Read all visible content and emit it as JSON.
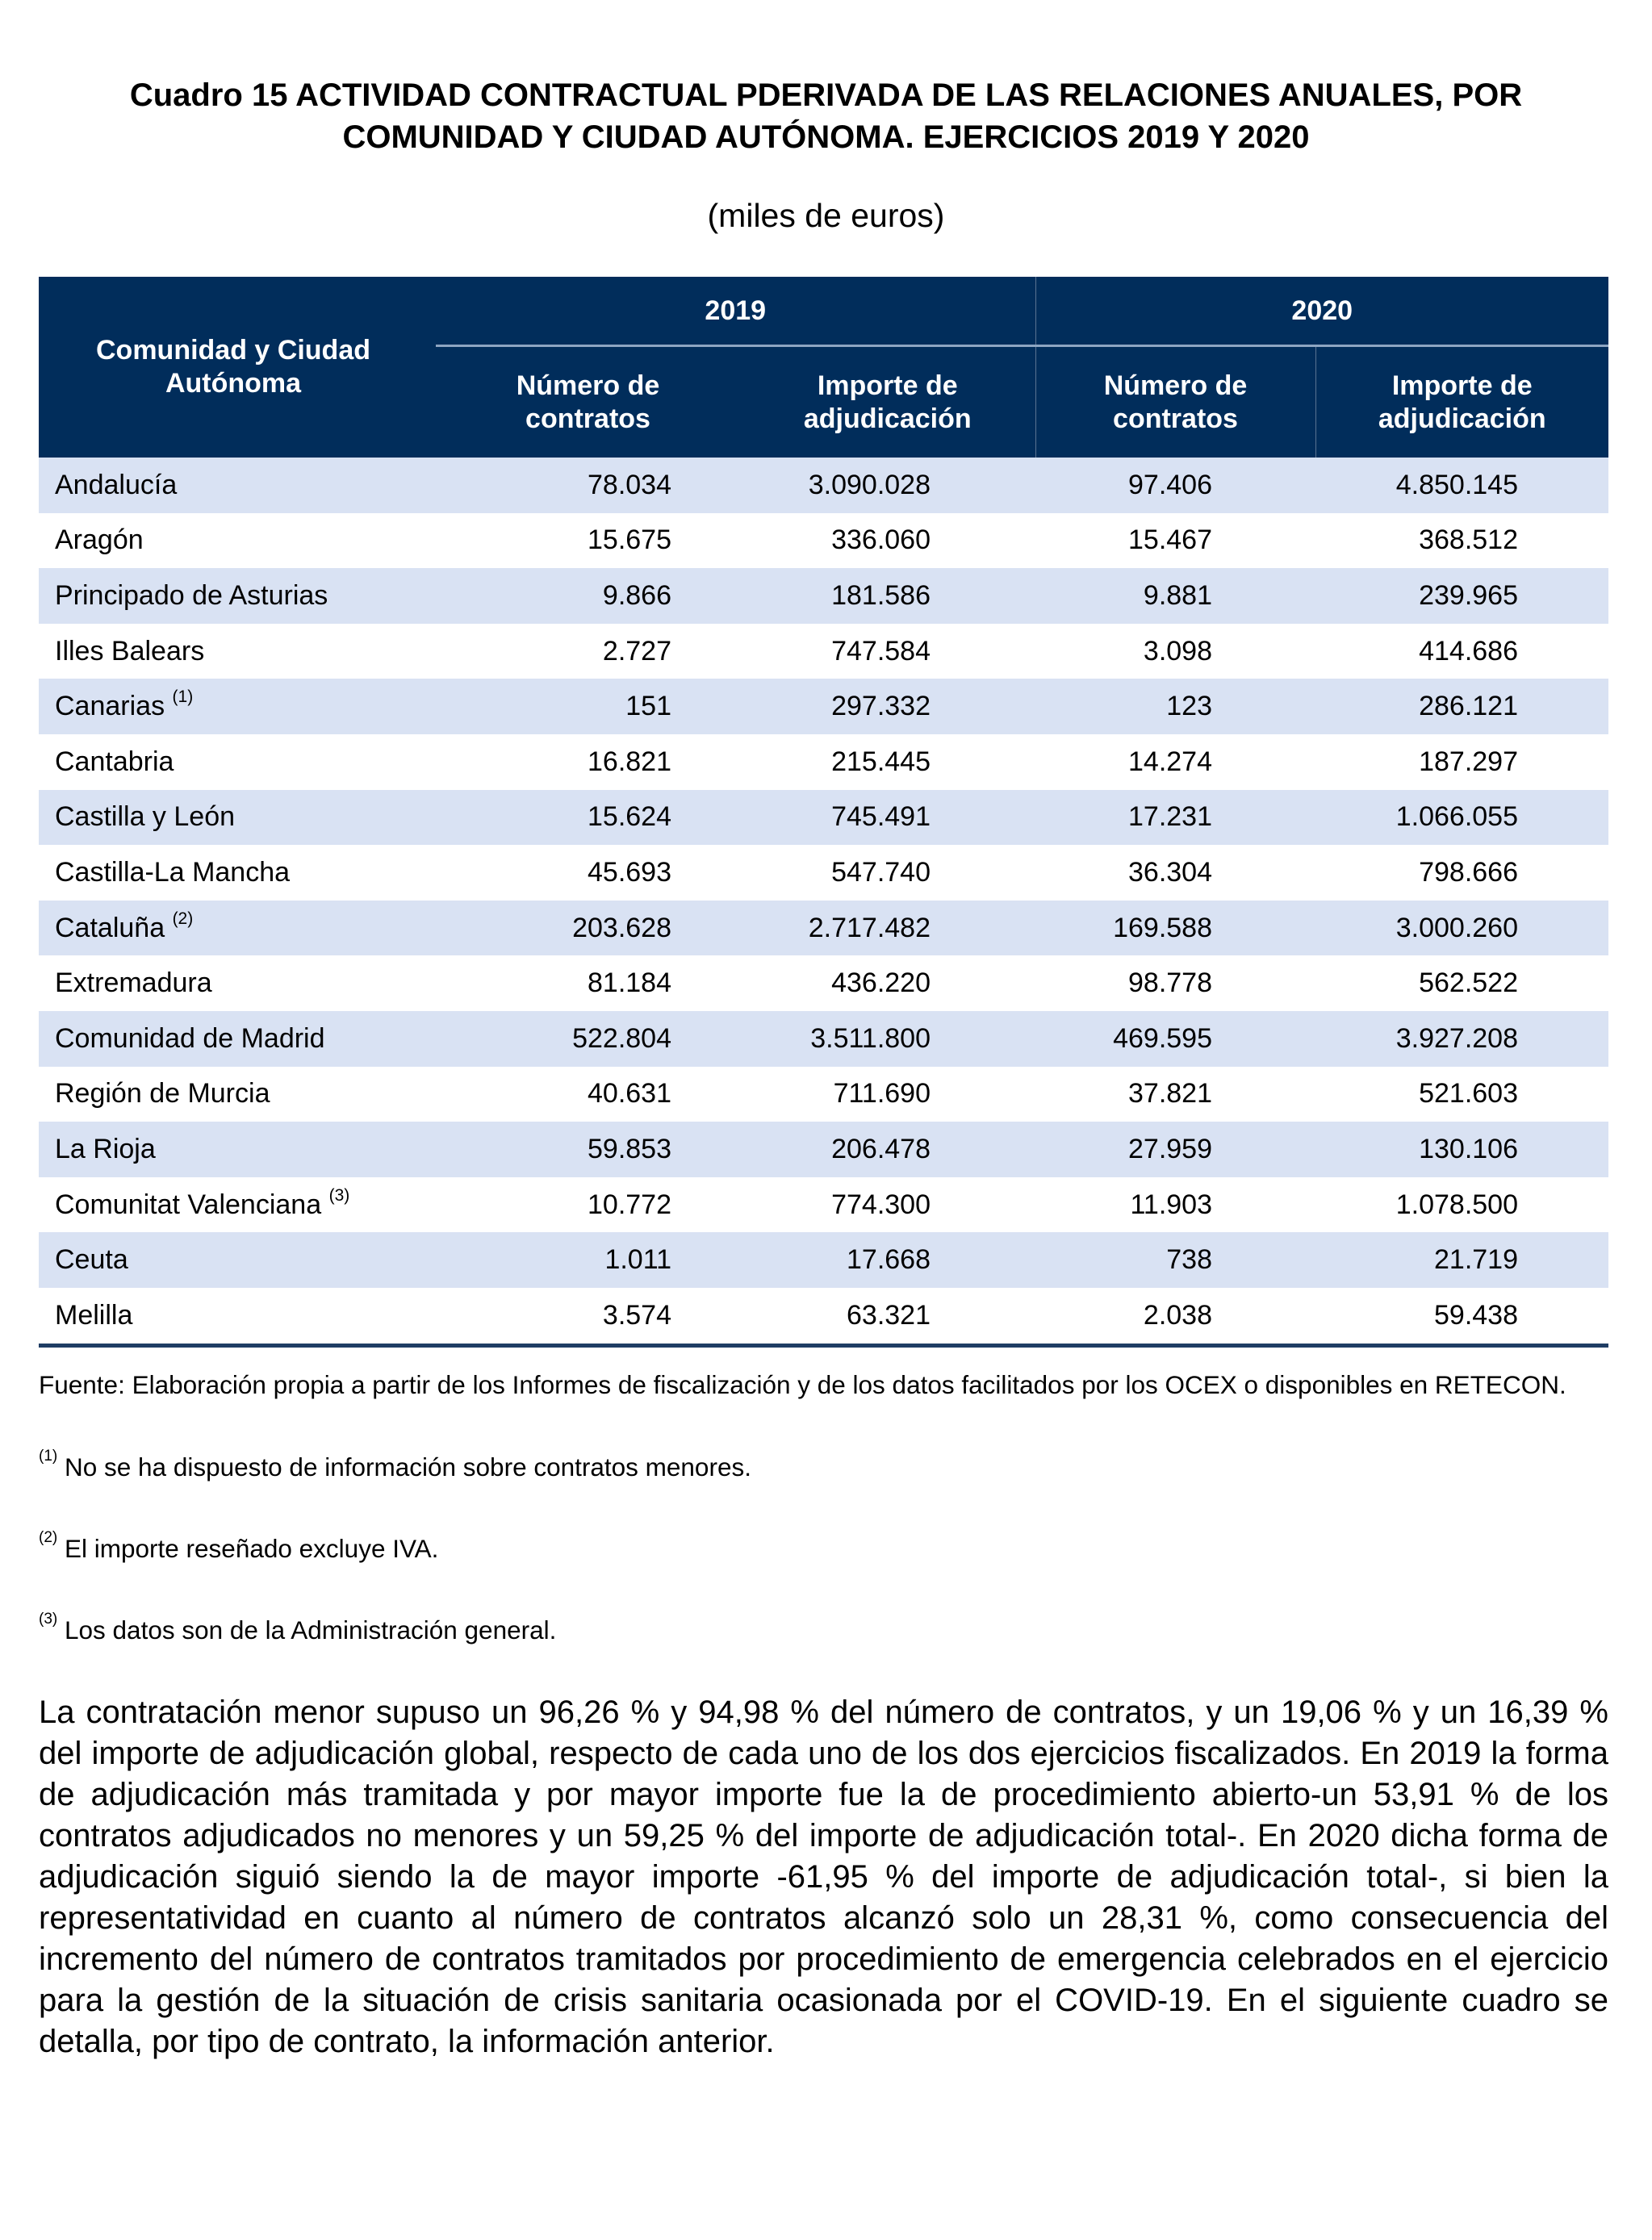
{
  "title": "Cuadro 15 ACTIVIDAD CONTRACTUAL PDERIVADA DE LAS RELACIONES ANUALES, POR COMUNIDAD Y CIUDAD AUTÓNOMA. EJERCICIOS 2019 Y 2020",
  "subtitle": "(miles de euros)",
  "table": {
    "header_region": "Comunidad y Ciudad Autónoma",
    "years": [
      "2019",
      "2020"
    ],
    "col_count": "Número de contratos",
    "col_amount": "Importe de adjudicación",
    "rows": [
      {
        "name": "Andalucía",
        "note": "",
        "n2019": "78.034",
        "i2019": "3.090.028",
        "n2020": "97.406",
        "i2020": "4.850.145"
      },
      {
        "name": "Aragón",
        "note": "",
        "n2019": "15.675",
        "i2019": "336.060",
        "n2020": "15.467",
        "i2020": "368.512"
      },
      {
        "name": "Principado de Asturias",
        "note": "",
        "n2019": "9.866",
        "i2019": "181.586",
        "n2020": "9.881",
        "i2020": "239.965"
      },
      {
        "name": "Illes Balears",
        "note": "",
        "n2019": "2.727",
        "i2019": "747.584",
        "n2020": "3.098",
        "i2020": "414.686"
      },
      {
        "name": "Canarias",
        "note": "(1)",
        "n2019": "151",
        "i2019": "297.332",
        "n2020": "123",
        "i2020": "286.121"
      },
      {
        "name": "Cantabria",
        "note": "",
        "n2019": "16.821",
        "i2019": "215.445",
        "n2020": "14.274",
        "i2020": "187.297"
      },
      {
        "name": "Castilla y León",
        "note": "",
        "n2019": "15.624",
        "i2019": "745.491",
        "n2020": "17.231",
        "i2020": "1.066.055"
      },
      {
        "name": "Castilla-La Mancha",
        "note": "",
        "n2019": "45.693",
        "i2019": "547.740",
        "n2020": "36.304",
        "i2020": "798.666"
      },
      {
        "name": "Cataluña",
        "note": "(2)",
        "n2019": "203.628",
        "i2019": "2.717.482",
        "n2020": "169.588",
        "i2020": "3.000.260"
      },
      {
        "name": "Extremadura",
        "note": "",
        "n2019": "81.184",
        "i2019": "436.220",
        "n2020": "98.778",
        "i2020": "562.522"
      },
      {
        "name": "Comunidad de Madrid",
        "note": "",
        "n2019": "522.804",
        "i2019": "3.511.800",
        "n2020": "469.595",
        "i2020": "3.927.208"
      },
      {
        "name": "Región de Murcia",
        "note": "",
        "n2019": "40.631",
        "i2019": "711.690",
        "n2020": "37.821",
        "i2020": "521.603"
      },
      {
        "name": "La Rioja",
        "note": "",
        "n2019": "59.853",
        "i2019": "206.478",
        "n2020": "27.959",
        "i2020": "130.106"
      },
      {
        "name": "Comunitat Valenciana",
        "note": "(3)",
        "n2019": "10.772",
        "i2019": "774.300",
        "n2020": "11.903",
        "i2020": "1.078.500"
      },
      {
        "name": "Ceuta",
        "note": "",
        "n2019": "1.011",
        "i2019": "17.668",
        "n2020": "738",
        "i2020": "21.719"
      },
      {
        "name": "Melilla",
        "note": "",
        "n2019": "3.574",
        "i2019": "63.321",
        "n2020": "2.038",
        "i2020": "59.438"
      }
    ]
  },
  "source": "Fuente: Elaboración propia a partir de los Informes de fiscalización y de los datos facilitados por los OCEX o disponibles en RETECON.",
  "notes": [
    {
      "mark": "(1)",
      "text": "No se ha dispuesto de información sobre contratos menores."
    },
    {
      "mark": "(2)",
      "text": "El importe reseñado excluye IVA."
    },
    {
      "mark": "(3)",
      "text": "Los datos son de la Administración general."
    }
  ],
  "body": "La contratación menor supuso un 96,26 % y 94,98 % del número de contratos, y un 19,06 % y un 16,39 % del importe de adjudicación global, respecto de cada uno de los dos ejercicios fiscalizados. En 2019 la forma de adjudicación más tramitada y por mayor importe fue la de procedimiento abierto-un 53,91 % de los contratos adjudicados no menores y un 59,25 % del importe de adjudicación total-. En 2020 dicha forma de adjudicación siguió siendo la de mayor importe -61,95 % del importe de adjudicación total-, si bien la representatividad en cuanto al número de contratos alcanzó solo un 28,31 %, como consecuencia del incremento del número de contratos tramitados por procedimiento de emergencia celebrados en el ejercicio para la gestión de la situación de crisis sanitaria ocasionada por el COVID-19. En el siguiente cuadro se detalla, por tipo de contrato, la información anterior.",
  "colors": {
    "header_bg": "#012d5b",
    "stripe": "#d9e2f3"
  }
}
